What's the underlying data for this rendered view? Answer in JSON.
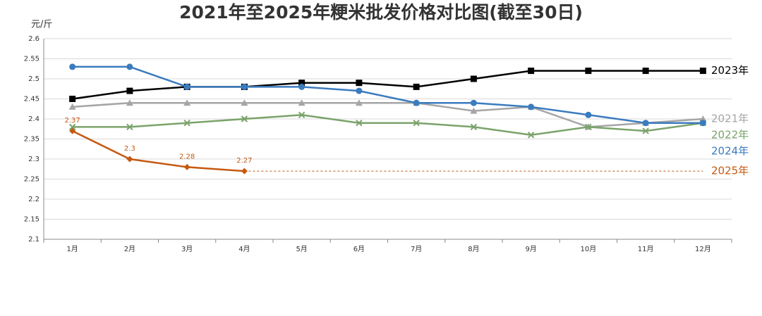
{
  "chart_data": {
    "type": "line",
    "title": "2021年至2025年粳米批发价格对比图(截至30日)",
    "y_axis_label": "元/斤",
    "categories": [
      "1月",
      "2月",
      "3月",
      "4月",
      "5月",
      "6月",
      "7月",
      "8月",
      "9月",
      "10月",
      "11月",
      "12月"
    ],
    "series": [
      {
        "name": "2021年",
        "color": "#a5a5a5",
        "marker": "triangle",
        "values": [
          2.43,
          2.44,
          2.44,
          2.44,
          2.44,
          2.44,
          2.44,
          2.42,
          2.43,
          2.38,
          2.39,
          2.4
        ]
      },
      {
        "name": "2022年",
        "color": "#7aa36a",
        "marker": "x",
        "values": [
          2.38,
          2.38,
          2.39,
          2.4,
          2.41,
          2.39,
          2.39,
          2.38,
          2.36,
          2.38,
          2.37,
          2.39
        ]
      },
      {
        "name": "2023年",
        "color": "#000000",
        "marker": "square",
        "values": [
          2.45,
          2.47,
          2.48,
          2.48,
          2.49,
          2.49,
          2.48,
          2.5,
          2.52,
          2.52,
          2.52,
          2.52
        ]
      },
      {
        "name": "2024年",
        "color": "#3b7bbf",
        "marker": "circle",
        "values": [
          2.53,
          2.53,
          2.48,
          2.48,
          2.48,
          2.47,
          2.44,
          2.44,
          2.43,
          2.41,
          2.39,
          2.39
        ]
      },
      {
        "name": "2025年",
        "color": "#c55a11",
        "marker": "diamond",
        "data_labels": true,
        "values": [
          2.37,
          2.3,
          2.28,
          2.27,
          null,
          null,
          null,
          null,
          null,
          null,
          null,
          null
        ]
      }
    ],
    "ylim": [
      2.1,
      2.6
    ],
    "yticks": [
      2.1,
      2.15,
      2.2,
      2.25,
      2.3,
      2.35,
      2.4,
      2.45,
      2.5,
      2.55,
      2.6
    ],
    "grid": true
  }
}
